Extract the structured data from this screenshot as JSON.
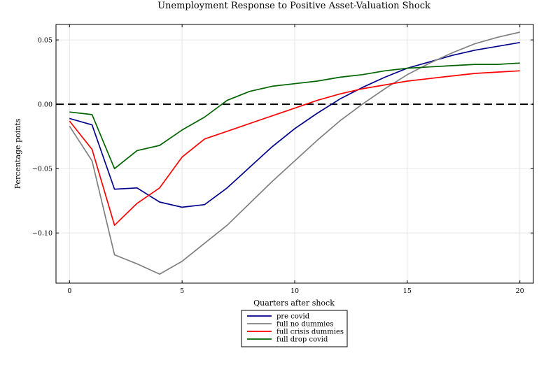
{
  "chart_data": {
    "type": "line",
    "title": "Unemployment Response to Positive Asset-Valuation Shock",
    "xlabel": "Quarters after shock",
    "ylabel": "Percentage points",
    "xlim": [
      -0.6,
      20.6
    ],
    "ylim": [
      -0.139,
      0.062
    ],
    "xticks": [
      0,
      5,
      10,
      15,
      20
    ],
    "xtick_labels": [
      "0",
      "5",
      "10",
      "15",
      "20"
    ],
    "yticks": [
      -0.1,
      -0.05,
      0.0,
      0.05
    ],
    "ytick_labels": [
      "−0.10",
      "−0.05",
      "0.00",
      "0.05"
    ],
    "grid": true,
    "legend_position": "bottom-outside",
    "zero_line": {
      "y": 0,
      "style": "dashed",
      "color": "#000000"
    },
    "x": [
      0,
      1,
      2,
      3,
      4,
      5,
      6,
      7,
      8,
      9,
      10,
      11,
      12,
      13,
      14,
      15,
      16,
      17,
      18,
      19,
      20
    ],
    "series": [
      {
        "name": "pre covid",
        "color": "#00008b",
        "values": [
          -0.011,
          -0.016,
          -0.066,
          -0.065,
          -0.076,
          -0.08,
          -0.078,
          -0.065,
          -0.049,
          -0.033,
          -0.019,
          -0.007,
          0.004,
          0.013,
          0.021,
          0.028,
          0.033,
          0.038,
          0.042,
          0.045,
          0.048
        ]
      },
      {
        "name": "full no dummies",
        "color": "#808080",
        "values": [
          -0.017,
          -0.044,
          -0.117,
          -0.124,
          -0.132,
          -0.122,
          -0.108,
          -0.094,
          -0.077,
          -0.06,
          -0.044,
          -0.028,
          -0.013,
          0.0,
          0.012,
          0.023,
          0.032,
          0.04,
          0.047,
          0.052,
          0.056
        ]
      },
      {
        "name": "full crisis dummies",
        "color": "#ff0000",
        "values": [
          -0.013,
          -0.035,
          -0.094,
          -0.077,
          -0.065,
          -0.041,
          -0.027,
          -0.021,
          -0.015,
          -0.009,
          -0.003,
          0.003,
          0.008,
          0.012,
          0.015,
          0.018,
          0.02,
          0.022,
          0.024,
          0.025,
          0.026
        ]
      },
      {
        "name": "full drop covid",
        "color": "#006400",
        "values": [
          -0.006,
          -0.008,
          -0.05,
          -0.036,
          -0.032,
          -0.02,
          -0.01,
          0.003,
          0.01,
          0.014,
          0.016,
          0.018,
          0.021,
          0.023,
          0.026,
          0.028,
          0.029,
          0.03,
          0.031,
          0.031,
          0.032
        ]
      }
    ]
  }
}
